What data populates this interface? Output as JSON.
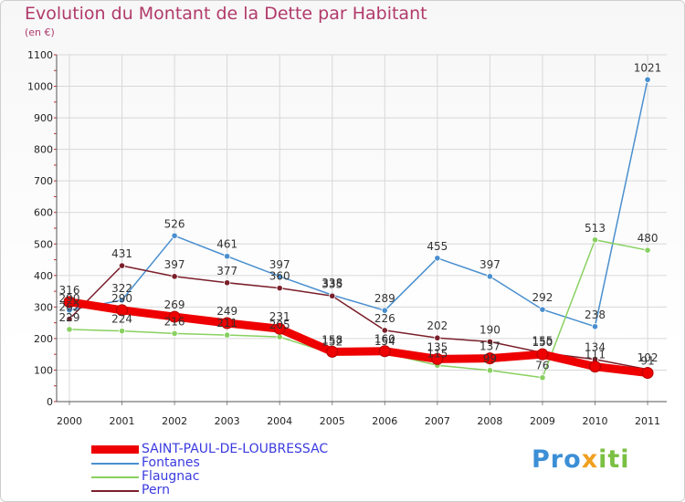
{
  "header": {
    "title": "Evolution du Montant de la Dette par Habitant",
    "unit": "(en €)"
  },
  "logo": {
    "parts": [
      "P",
      "r",
      "o",
      "x",
      "i",
      "t",
      "i"
    ],
    "colors": [
      "#3c8fd6",
      "#3c8fd6",
      "#3c8fd6",
      "#f0a020",
      "#7ac043",
      "#7ac043",
      "#7ac043"
    ]
  },
  "chart_data": {
    "type": "line",
    "title": "Evolution du Montant de la Dette par Habitant",
    "subtitle": "(en €)",
    "xlabel": "",
    "ylabel": "",
    "categories": [
      "2000",
      "2001",
      "2002",
      "2003",
      "2004",
      "2005",
      "2006",
      "2007",
      "2008",
      "2009",
      "2010",
      "2011"
    ],
    "ylim": [
      0,
      1100
    ],
    "yticks": [
      0,
      100,
      200,
      300,
      400,
      500,
      600,
      700,
      800,
      900,
      1000,
      1100
    ],
    "grid": true,
    "legend": "bottom-left",
    "series": [
      {
        "name": "SAINT-PAUL-DE-LOUBRESSAC",
        "values": [
          316,
          290,
          269,
          249,
          231,
          158,
          160,
          135,
          137,
          150,
          111,
          91
        ],
        "color": "#ee0000"
      },
      {
        "name": "Fontanes",
        "values": [
          290,
          322,
          526,
          461,
          397,
          338,
          289,
          455,
          397,
          292,
          238,
          1021
        ],
        "color": "#4a8fcf"
      },
      {
        "name": "Flaugnac",
        "values": [
          229,
          224,
          216,
          211,
          205,
          152,
          154,
          115,
          99,
          76,
          513,
          480
        ],
        "color": "#88d060"
      },
      {
        "name": "Pern",
        "values": [
          262,
          431,
          397,
          377,
          360,
          335,
          226,
          202,
          190,
          155,
          134,
          102
        ],
        "color": "#7a1f2a"
      }
    ]
  }
}
